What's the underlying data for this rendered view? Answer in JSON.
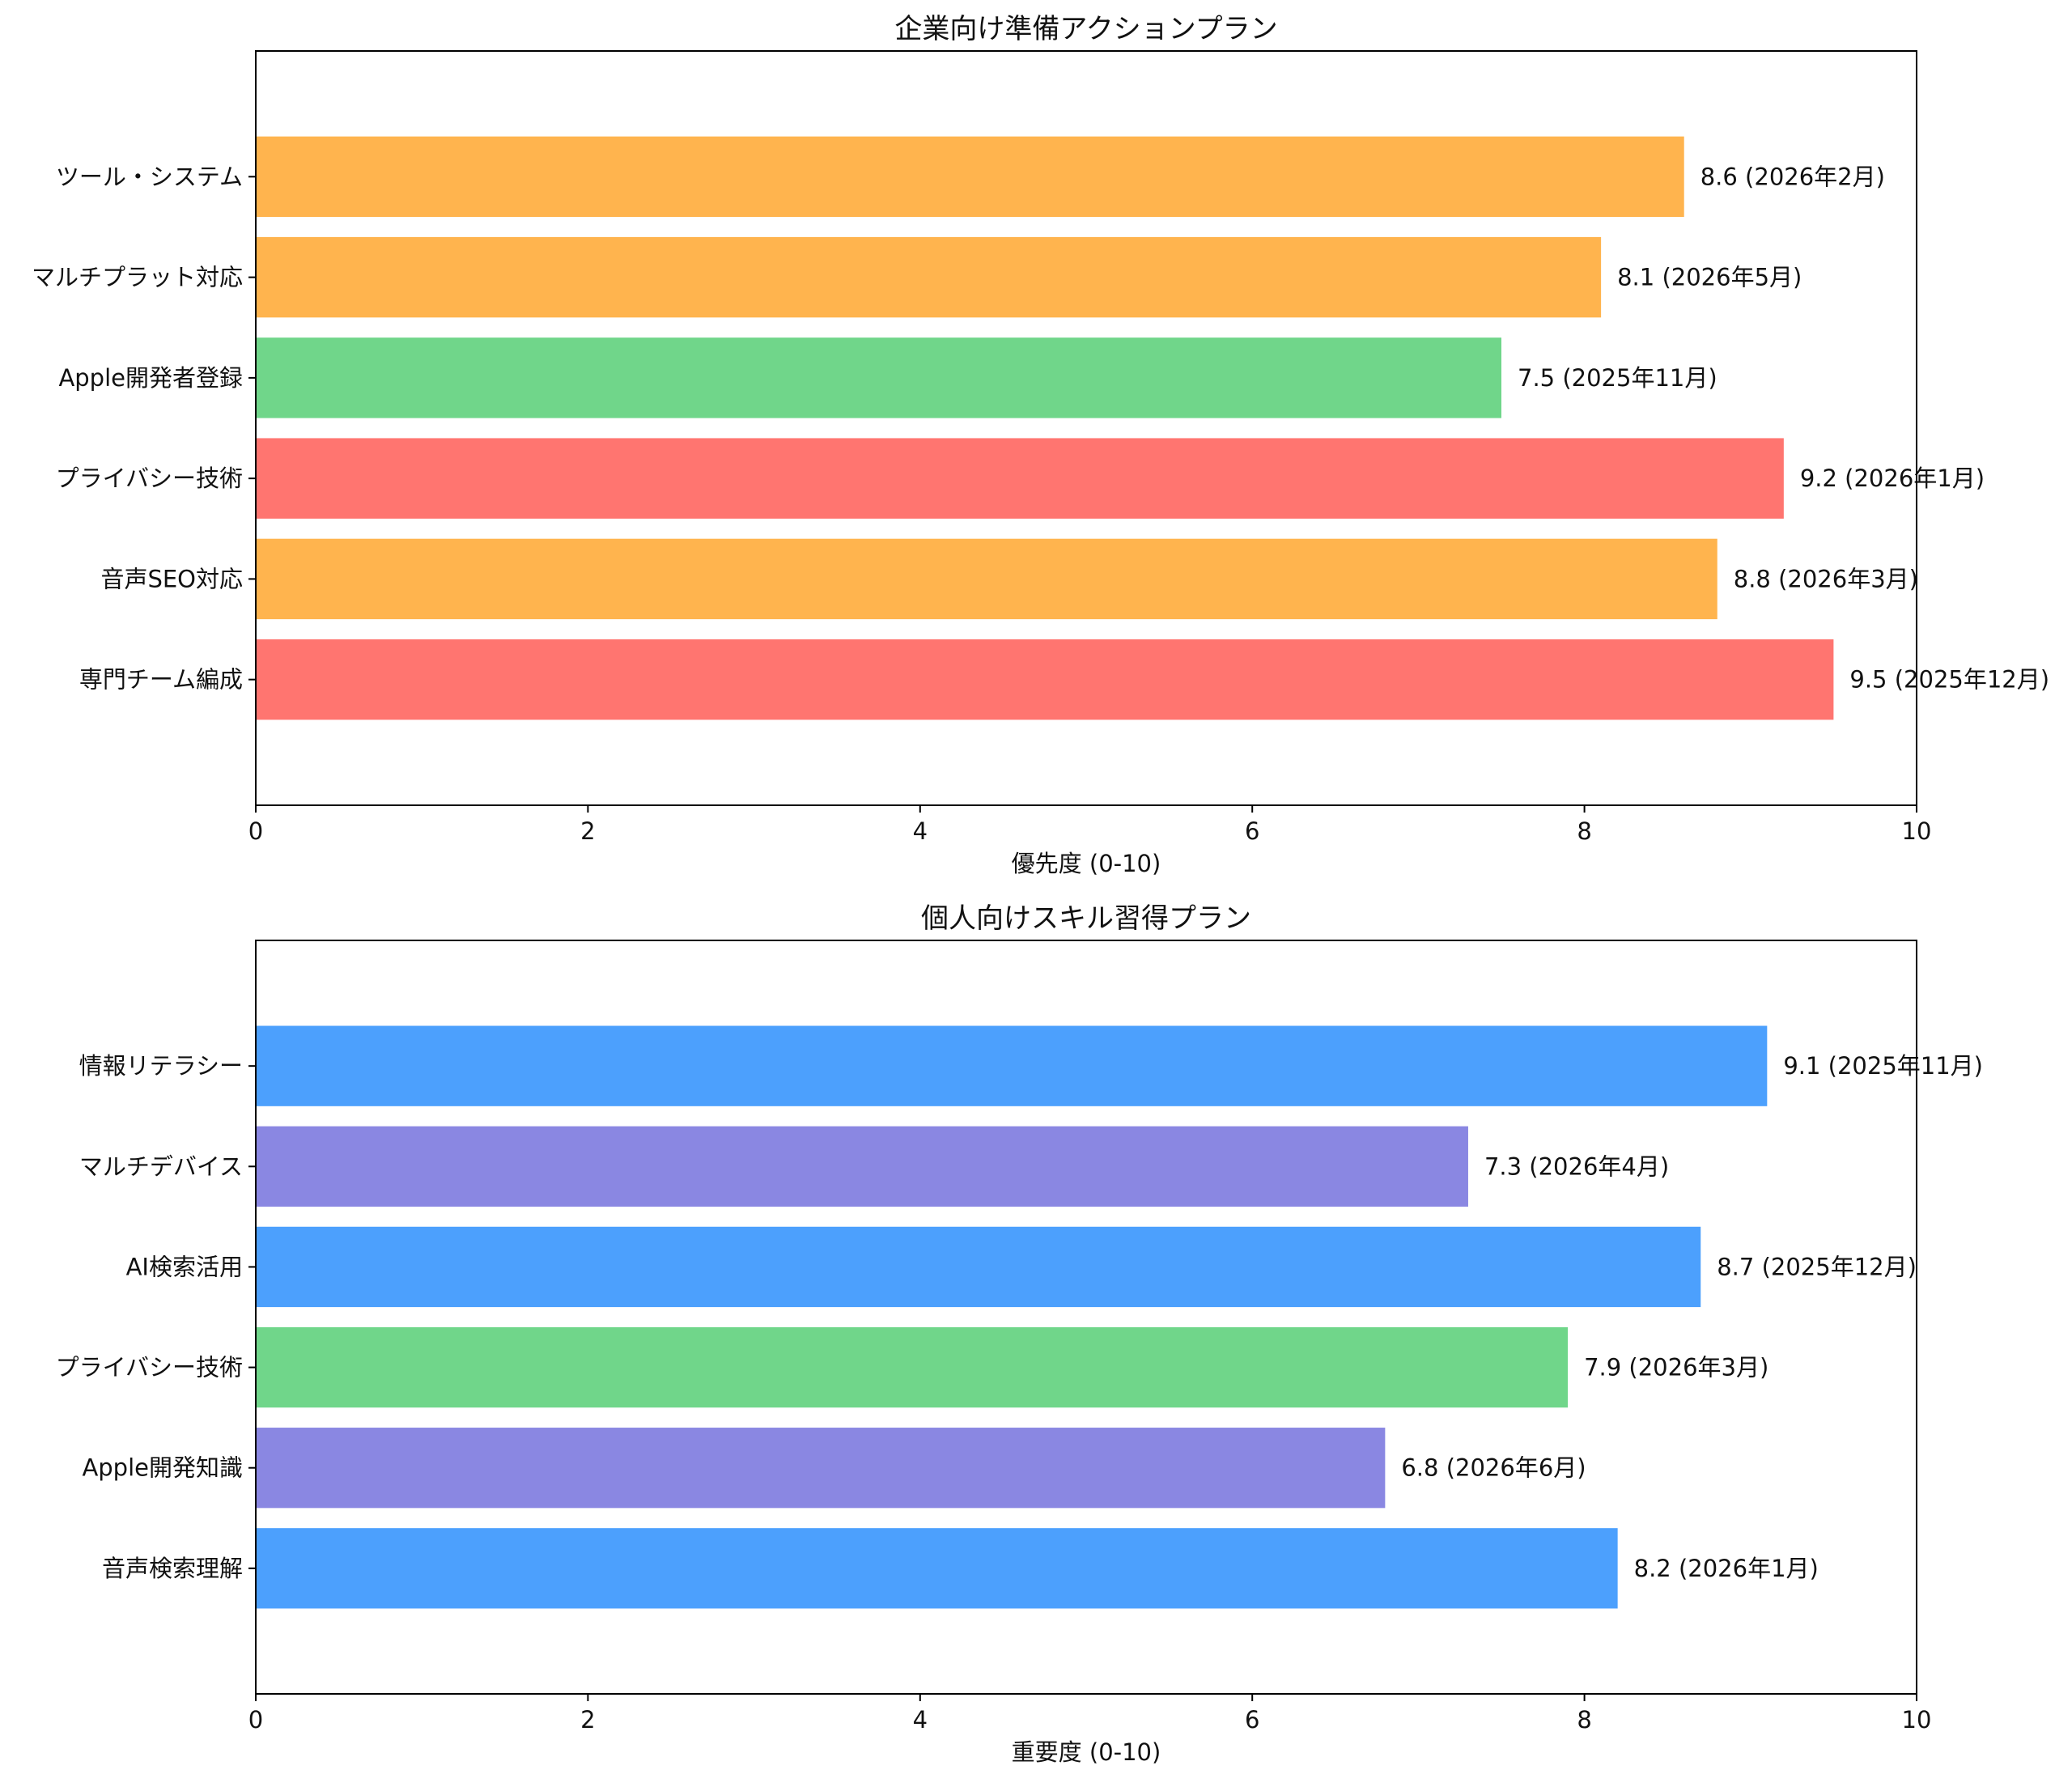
{
  "colors": {
    "red": "#ff7570",
    "orange": "#ffb44e",
    "green": "#70d68a",
    "blue": "#4ca0fd",
    "purple": "#8a87e2"
  },
  "chart_data": [
    {
      "type": "bar",
      "orientation": "horizontal",
      "title": "企業向け準備アクションプラン",
      "xlabel": "優先度 (0-10)",
      "ylabel": "",
      "xlim": [
        0,
        10
      ],
      "xticks": [
        "0",
        "2",
        "4",
        "6",
        "8",
        "10"
      ],
      "grid": false,
      "categories": [
        "ツール・システム",
        "マルチプラット対応",
        "Apple開発者登録",
        "プライバシー技術",
        "音声SEO対応",
        "専門チーム編成"
      ],
      "values": [
        8.6,
        8.1,
        7.5,
        9.2,
        8.8,
        9.5
      ],
      "data_labels": [
        "8.6 (2026年2月)",
        "8.1 (2026年5月)",
        "7.5 (2025年11月)",
        "9.2 (2026年1月)",
        "8.8 (2026年3月)",
        "9.5 (2025年12月)"
      ],
      "bar_colors": [
        "#ffb44e",
        "#ffb44e",
        "#70d68a",
        "#ff7570",
        "#ffb44e",
        "#ff7570"
      ]
    },
    {
      "type": "bar",
      "orientation": "horizontal",
      "title": "個人向けスキル習得プラン",
      "xlabel": "重要度 (0-10)",
      "ylabel": "",
      "xlim": [
        0,
        10
      ],
      "xticks": [
        "0",
        "2",
        "4",
        "6",
        "8",
        "10"
      ],
      "grid": false,
      "categories": [
        "情報リテラシー",
        "マルチデバイス",
        "AI検索活用",
        "プライバシー技術",
        "Apple開発知識",
        "音声検索理解"
      ],
      "values": [
        9.1,
        7.3,
        8.7,
        7.9,
        6.8,
        8.2
      ],
      "data_labels": [
        "9.1 (2025年11月)",
        "7.3 (2026年4月)",
        "8.7 (2025年12月)",
        "7.9 (2026年3月)",
        "6.8 (2026年6月)",
        "8.2 (2026年1月)"
      ],
      "bar_colors": [
        "#4ca0fd",
        "#8a87e2",
        "#4ca0fd",
        "#70d68a",
        "#8a87e2",
        "#4ca0fd"
      ]
    }
  ]
}
